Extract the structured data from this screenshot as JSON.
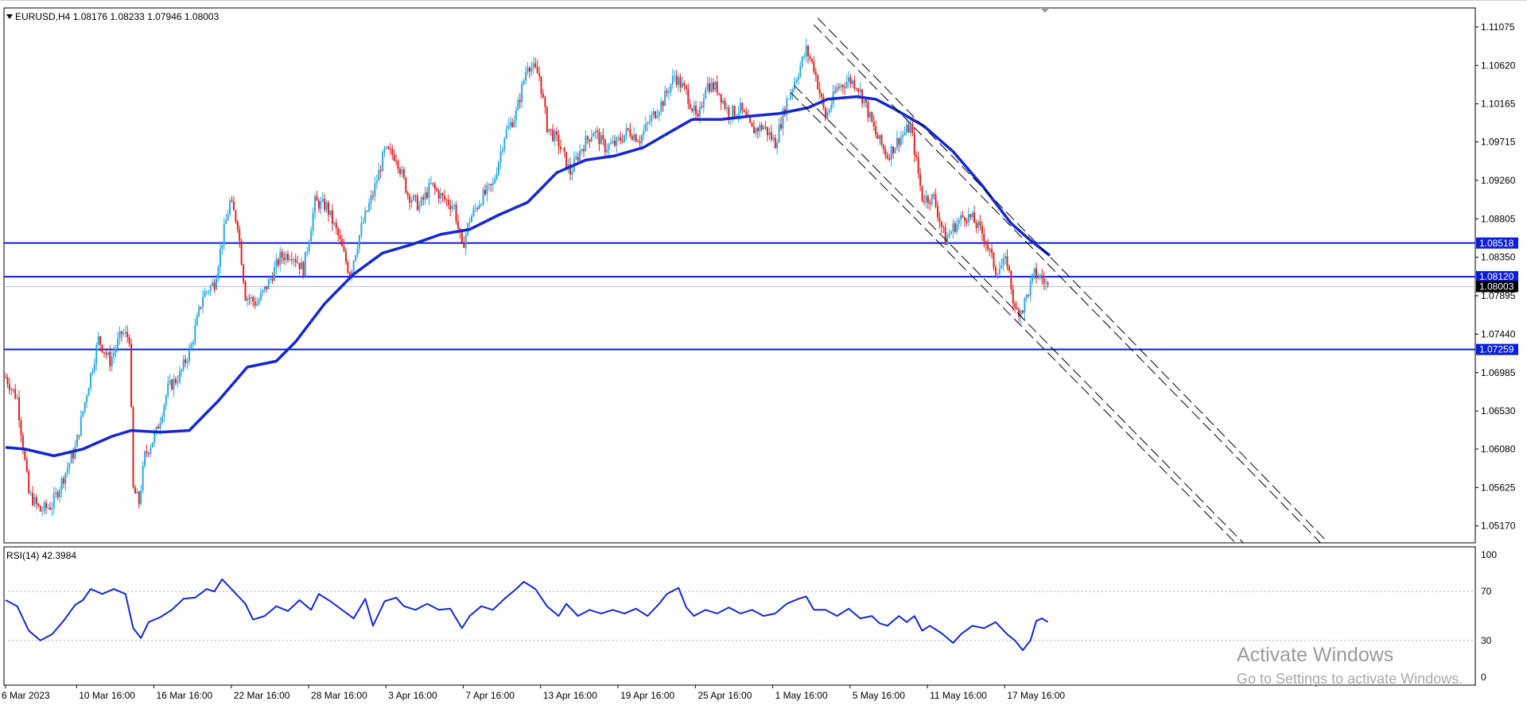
{
  "chart_header": {
    "symbol": "EURUSD,H4",
    "open": "1.08176",
    "high": "1.08233",
    "low": "1.07946",
    "close": "1.08003"
  },
  "rsi_header": {
    "label": "RSI(14)",
    "value": "42.3984"
  },
  "watermark": {
    "line1": "Activate Windows",
    "line2": "Go to Settings to activate Windows."
  },
  "colors": {
    "bull": "#29A8E0",
    "bear": "#E02020",
    "ma": "#1428D2",
    "level": "#0A1EDC",
    "rsi": "#1428D2",
    "channel": "#000000"
  },
  "chart_data": [
    {
      "type": "candlestick",
      "title": "EURUSD,H4",
      "timeframe": "H4",
      "ylim": [
        1.0497,
        1.113
      ],
      "y_ticks": [
        "1.11075",
        "1.10620",
        "1.10165",
        "1.09715",
        "1.09260",
        "1.08805",
        "1.08350",
        "1.07895",
        "1.07440",
        "1.06985",
        "1.06530",
        "1.06080",
        "1.05625",
        "1.05170"
      ],
      "x_ticks": [
        "6 Mar 2023",
        "10 Mar 16:00",
        "16 Mar 16:00",
        "22 Mar 16:00",
        "28 Mar 16:00",
        "3 Apr 16:00",
        "7 Apr 16:00",
        "13 Apr 16:00",
        "19 Apr 16:00",
        "25 Apr 16:00",
        "1 May 16:00",
        "5 May 16:00",
        "11 May 16:00",
        "17 May 16:00"
      ],
      "price_path": [
        [
          0,
          1.0693
        ],
        [
          6,
          1.0668
        ],
        [
          12,
          1.0555
        ],
        [
          18,
          1.0535
        ],
        [
          24,
          1.0542
        ],
        [
          30,
          1.0575
        ],
        [
          36,
          1.0608
        ],
        [
          42,
          1.0675
        ],
        [
          48,
          1.0738
        ],
        [
          54,
          1.0712
        ],
        [
          60,
          1.0745
        ],
        [
          64,
          1.074
        ],
        [
          66,
          1.056
        ],
        [
          69,
          1.0545
        ],
        [
          72,
          1.06
        ],
        [
          78,
          1.0628
        ],
        [
          84,
          1.068
        ],
        [
          90,
          1.0695
        ],
        [
          96,
          1.073
        ],
        [
          102,
          1.079
        ],
        [
          108,
          1.0805
        ],
        [
          112,
          1.0855
        ],
        [
          116,
          1.09
        ],
        [
          120,
          1.0875
        ],
        [
          124,
          1.079
        ],
        [
          130,
          1.078
        ],
        [
          136,
          1.0805
        ],
        [
          142,
          1.0835
        ],
        [
          148,
          1.084
        ],
        [
          154,
          1.082
        ],
        [
          160,
          1.09
        ],
        [
          166,
          1.0895
        ],
        [
          172,
          1.086
        ],
        [
          178,
          1.0815
        ],
        [
          184,
          1.087
        ],
        [
          190,
          1.091
        ],
        [
          196,
          1.096
        ],
        [
          202,
          1.0955
        ],
        [
          208,
          1.091
        ],
        [
          214,
          1.0895
        ],
        [
          220,
          1.092
        ],
        [
          226,
          1.0905
        ],
        [
          232,
          1.0895
        ],
        [
          236,
          1.0845
        ],
        [
          240,
          1.088
        ],
        [
          246,
          1.0905
        ],
        [
          252,
          1.092
        ],
        [
          258,
          1.098
        ],
        [
          264,
          1.1005
        ],
        [
          270,
          1.1065
        ],
        [
          276,
          1.105
        ],
        [
          280,
          1.099
        ],
        [
          286,
          1.097
        ],
        [
          292,
          1.0935
        ],
        [
          298,
          1.0965
        ],
        [
          304,
          1.0985
        ],
        [
          310,
          1.0965
        ],
        [
          316,
          1.097
        ],
        [
          322,
          1.0985
        ],
        [
          328,
          1.0975
        ],
        [
          334,
          1.1
        ],
        [
          340,
          1.102
        ],
        [
          346,
          1.105
        ],
        [
          352,
          1.103
        ],
        [
          358,
          1.0995
        ],
        [
          362,
          1.104
        ],
        [
          368,
          1.1035
        ],
        [
          374,
          1.1005
        ],
        [
          380,
          1.101
        ],
        [
          386,
          1.0985
        ],
        [
          392,
          1.099
        ],
        [
          398,
          1.097
        ],
        [
          404,
          1.102
        ],
        [
          410,
          1.1055
        ],
        [
          414,
          1.108
        ],
        [
          418,
          1.106
        ],
        [
          424,
          1.1
        ],
        [
          430,
          1.1035
        ],
        [
          436,
          1.1045
        ],
        [
          440,
          1.104
        ],
        [
          444,
          1.102
        ],
        [
          450,
          1.098
        ],
        [
          456,
          1.0955
        ],
        [
          462,
          1.0975
        ],
        [
          468,
          1.099
        ],
        [
          474,
          1.0905
        ],
        [
          480,
          1.0905
        ],
        [
          486,
          1.0855
        ],
        [
          490,
          1.087
        ],
        [
          496,
          1.0885
        ],
        [
          500,
          1.088
        ],
        [
          506,
          1.086
        ],
        [
          512,
          1.082
        ],
        [
          518,
          1.083
        ],
        [
          522,
          1.077
        ],
        [
          526,
          1.0775
        ],
        [
          532,
          1.0815
        ],
        [
          536,
          1.081
        ],
        [
          539,
          1.08
        ]
      ],
      "series": [
        {
          "name": "MA",
          "type": "line",
          "points": [
            [
              0,
              1.061
            ],
            [
              10,
              1.0608
            ],
            [
              25,
              1.06
            ],
            [
              40,
              1.0608
            ],
            [
              55,
              1.0623
            ],
            [
              65,
              1.063
            ],
            [
              80,
              1.0628
            ],
            [
              95,
              1.063
            ],
            [
              110,
              1.0665
            ],
            [
              125,
              1.0705
            ],
            [
              140,
              1.0712
            ],
            [
              150,
              1.0735
            ],
            [
              165,
              1.078
            ],
            [
              180,
              1.0815
            ],
            [
              195,
              1.084
            ],
            [
              210,
              1.085
            ],
            [
              225,
              1.0862
            ],
            [
              240,
              1.0868
            ],
            [
              255,
              1.0885
            ],
            [
              270,
              1.09
            ],
            [
              285,
              1.0935
            ],
            [
              300,
              1.095
            ],
            [
              315,
              1.0955
            ],
            [
              330,
              1.0965
            ],
            [
              345,
              1.0985
            ],
            [
              355,
              1.0998
            ],
            [
              370,
              1.0998
            ],
            [
              385,
              1.1002
            ],
            [
              400,
              1.1005
            ],
            [
              415,
              1.1012
            ],
            [
              425,
              1.1022
            ],
            [
              440,
              1.1025
            ],
            [
              450,
              1.1022
            ],
            [
              460,
              1.101
            ],
            [
              475,
              1.099
            ],
            [
              490,
              1.096
            ],
            [
              505,
              1.092
            ],
            [
              520,
              1.0875
            ],
            [
              530,
              1.0855
            ],
            [
              540,
              1.0837
            ]
          ]
        }
      ],
      "horizontal_levels": [
        "1.08518",
        "1.08120",
        "1.07259"
      ],
      "current_price": "1.08003",
      "channel": {
        "style": "dashed",
        "direction": "descending"
      }
    },
    {
      "type": "line",
      "title": "RSI(14) 42.3984",
      "ylim": [
        0,
        100
      ],
      "y_ticks": [
        "100",
        "70",
        "30",
        "0"
      ],
      "levels": [
        70,
        30
      ],
      "series": [
        {
          "name": "RSI(14)",
          "values": [
            [
              0,
              63
            ],
            [
              6,
              58
            ],
            [
              12,
              38
            ],
            [
              18,
              30
            ],
            [
              24,
              35
            ],
            [
              30,
              46
            ],
            [
              36,
              59
            ],
            [
              40,
              63
            ],
            [
              44,
              72
            ],
            [
              50,
              68
            ],
            [
              56,
              72
            ],
            [
              62,
              68
            ],
            [
              66,
              40
            ],
            [
              70,
              32
            ],
            [
              74,
              45
            ],
            [
              80,
              49
            ],
            [
              86,
              55
            ],
            [
              92,
              64
            ],
            [
              98,
              65
            ],
            [
              104,
              72
            ],
            [
              108,
              70
            ],
            [
              112,
              80
            ],
            [
              118,
              70
            ],
            [
              124,
              60
            ],
            [
              128,
              47
            ],
            [
              134,
              50
            ],
            [
              140,
              58
            ],
            [
              146,
              54
            ],
            [
              152,
              63
            ],
            [
              158,
              55
            ],
            [
              162,
              68
            ],
            [
              168,
              62
            ],
            [
              174,
              55
            ],
            [
              180,
              48
            ],
            [
              186,
              64
            ],
            [
              190,
              42
            ],
            [
              196,
              62
            ],
            [
              202,
              65
            ],
            [
              206,
              58
            ],
            [
              212,
              55
            ],
            [
              218,
              60
            ],
            [
              224,
              55
            ],
            [
              230,
              56
            ],
            [
              236,
              40
            ],
            [
              240,
              50
            ],
            [
              246,
              58
            ],
            [
              252,
              55
            ],
            [
              258,
              64
            ],
            [
              264,
              72
            ],
            [
              268,
              78
            ],
            [
              274,
              72
            ],
            [
              280,
              58
            ],
            [
              286,
              50
            ],
            [
              290,
              60
            ],
            [
              296,
              50
            ],
            [
              302,
              55
            ],
            [
              308,
              52
            ],
            [
              314,
              55
            ],
            [
              320,
              52
            ],
            [
              326,
              56
            ],
            [
              332,
              50
            ],
            [
              338,
              60
            ],
            [
              342,
              68
            ],
            [
              348,
              73
            ],
            [
              352,
              57
            ],
            [
              356,
              50
            ],
            [
              362,
              55
            ],
            [
              368,
              52
            ],
            [
              374,
              57
            ],
            [
              380,
              52
            ],
            [
              386,
              55
            ],
            [
              392,
              50
            ],
            [
              398,
              52
            ],
            [
              404,
              60
            ],
            [
              410,
              64
            ],
            [
              414,
              66
            ],
            [
              418,
              55
            ],
            [
              424,
              55
            ],
            [
              430,
              50
            ],
            [
              436,
              56
            ],
            [
              442,
              48
            ],
            [
              448,
              50
            ],
            [
              452,
              44
            ],
            [
              456,
              42
            ],
            [
              462,
              50
            ],
            [
              466,
              45
            ],
            [
              470,
              50
            ],
            [
              474,
              38
            ],
            [
              478,
              42
            ],
            [
              484,
              36
            ],
            [
              490,
              28
            ],
            [
              494,
              35
            ],
            [
              500,
              42
            ],
            [
              506,
              40
            ],
            [
              512,
              45
            ],
            [
              518,
              35
            ],
            [
              522,
              30
            ],
            [
              526,
              22
            ],
            [
              530,
              30
            ],
            [
              533,
              46
            ],
            [
              536,
              48
            ],
            [
              539,
              45
            ]
          ]
        }
      ]
    }
  ]
}
